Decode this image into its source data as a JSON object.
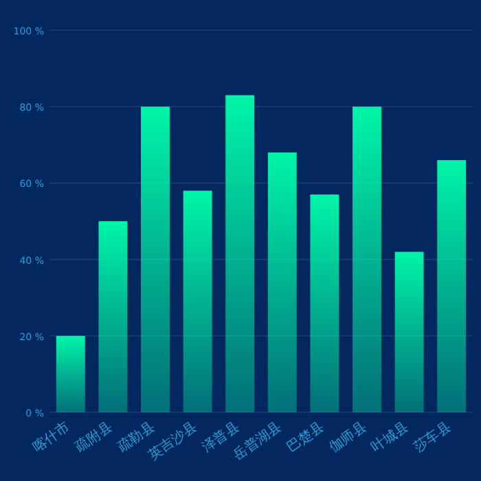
{
  "chart_data": {
    "type": "bar",
    "categories": [
      "喀什市",
      "疏附县",
      "疏勒县",
      "英吉沙县",
      "泽普县",
      "岳普湖县",
      "巴楚县",
      "伽师县",
      "叶城县",
      "莎车县"
    ],
    "values": [
      20,
      50,
      80,
      58,
      83,
      68,
      57,
      80,
      42,
      66
    ],
    "color": "#00f5a8",
    "ylim": [
      0,
      100
    ],
    "yticks": [
      {
        "value": 0,
        "label": "0 %"
      },
      {
        "value": 20,
        "label": "20 %"
      },
      {
        "value": 40,
        "label": "40 %"
      },
      {
        "value": 60,
        "label": "60 %"
      },
      {
        "value": 80,
        "label": "80 %"
      },
      {
        "value": 100,
        "label": "100 %"
      }
    ],
    "grid": "y"
  }
}
